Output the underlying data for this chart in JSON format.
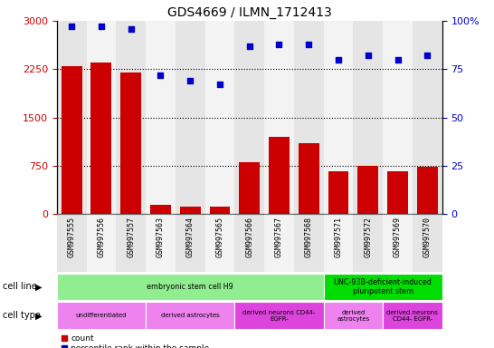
{
  "title": "GDS4669 / ILMN_1712413",
  "samples": [
    "GSM997555",
    "GSM997556",
    "GSM997557",
    "GSM997563",
    "GSM997564",
    "GSM997565",
    "GSM997566",
    "GSM997567",
    "GSM997568",
    "GSM997571",
    "GSM997572",
    "GSM997569",
    "GSM997570"
  ],
  "counts": [
    2300,
    2350,
    2200,
    150,
    120,
    110,
    800,
    1200,
    1100,
    670,
    750,
    660,
    740
  ],
  "percentiles": [
    97,
    97,
    96,
    72,
    69,
    67,
    87,
    88,
    88,
    80,
    82,
    80,
    82
  ],
  "bar_color": "#cc0000",
  "dot_color": "#0000cc",
  "ylim_left": [
    0,
    3000
  ],
  "ylim_right": [
    0,
    100
  ],
  "yticks_left": [
    0,
    750,
    1500,
    2250,
    3000
  ],
  "yticks_right": [
    0,
    25,
    50,
    75,
    100
  ],
  "ytick_labels_right": [
    "0",
    "25",
    "50",
    "75",
    "100%"
  ],
  "cell_line_groups": [
    {
      "label": "embryonic stem cell H9",
      "start": 0,
      "end": 9,
      "color": "#90ee90"
    },
    {
      "label": "UNC-93B-deficient-induced\npluripotent stem",
      "start": 9,
      "end": 13,
      "color": "#00dd00"
    }
  ],
  "cell_type_groups": [
    {
      "label": "undifferentiated",
      "start": 0,
      "end": 3,
      "color": "#ee82ee"
    },
    {
      "label": "derived astrocytes",
      "start": 3,
      "end": 6,
      "color": "#ee82ee"
    },
    {
      "label": "derived neurons CD44-\nEGFR-",
      "start": 6,
      "end": 9,
      "color": "#dd44dd"
    },
    {
      "label": "derived\nastrocytes",
      "start": 9,
      "end": 11,
      "color": "#ee82ee"
    },
    {
      "label": "derived neurons\nCD44- EGFR-",
      "start": 11,
      "end": 13,
      "color": "#dd44dd"
    }
  ],
  "tick_label_color_left": "#cc0000",
  "tick_label_color_right": "#0000cc",
  "grid_color": "#000000",
  "col_bg_odd": "#cccccc",
  "col_bg_even": "#e8e8e8"
}
